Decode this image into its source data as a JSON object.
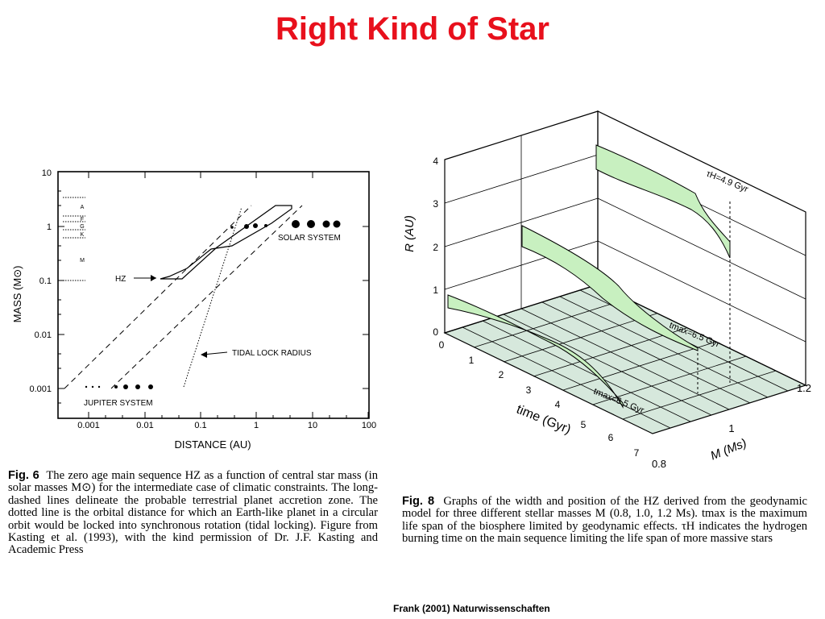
{
  "slide": {
    "title": "Right Kind of Star",
    "credit": "Frank (2001) Naturwissenschaften"
  },
  "fig6": {
    "ylabel": "MASS (M⊙)",
    "xlabel": "DISTANCE (AU)",
    "yticks": [
      "10",
      "1",
      "0.1",
      "0.01",
      "0.001"
    ],
    "xticks": [
      "0.001",
      "0.01",
      "0.1",
      "1",
      "10",
      "100"
    ],
    "spectral_types": [
      "A",
      "F",
      "G",
      "K",
      "M"
    ],
    "labels": {
      "hz": "HZ",
      "solar_system": "SOLAR SYSTEM",
      "tidal": "TIDAL LOCK RADIUS",
      "jupiter": "JUPITER SYSTEM"
    },
    "caption_label": "Fig. 6",
    "caption_text": "The zero age main sequence HZ as a function of central star mass (in solar masses M⊙) for the intermediate case of climatic constraints. The long-dashed lines delineate the probable terrestrial planet accretion zone. The dotted line is the orbital distance for which an Earth-like planet in a circular orbit would be locked into synchronous rotation (tidal locking). Figure from Kasting et al. (1993), with the kind permission of Dr. J.F. Kasting and Academic Press"
  },
  "fig8": {
    "rlabel": "R (AU)",
    "rticks": [
      "0",
      "1",
      "2",
      "3",
      "4"
    ],
    "timelabel": "time (Gyr)",
    "timeticks": [
      "0",
      "1",
      "2",
      "3",
      "4",
      "5",
      "6",
      "7"
    ],
    "masslabel": "M (Ms)",
    "massticks": [
      "0.8",
      "1",
      "1.2"
    ],
    "annotations": {
      "tau_h": "τH=4.9 Gyr",
      "tmax_mid": "tmax=6.5 Gyr",
      "tmax_front": "tmax=6.5 Gyr"
    },
    "caption_label": "Fig. 8",
    "caption_text": "Graphs of the width and position of the HZ derived from the geodynamic model for three different stellar masses M (0.8, 1.0, 1.2 Ms). tmax is the maximum life span of the biosphere limited by geodynamic effects. τH indicates the hydrogen burning time on the main sequence limiting the life span of more massive stars"
  },
  "colors": {
    "title": "#e8101c",
    "hz_fill": "#c8f0c0",
    "floor_fill": "#d6e8dc"
  }
}
